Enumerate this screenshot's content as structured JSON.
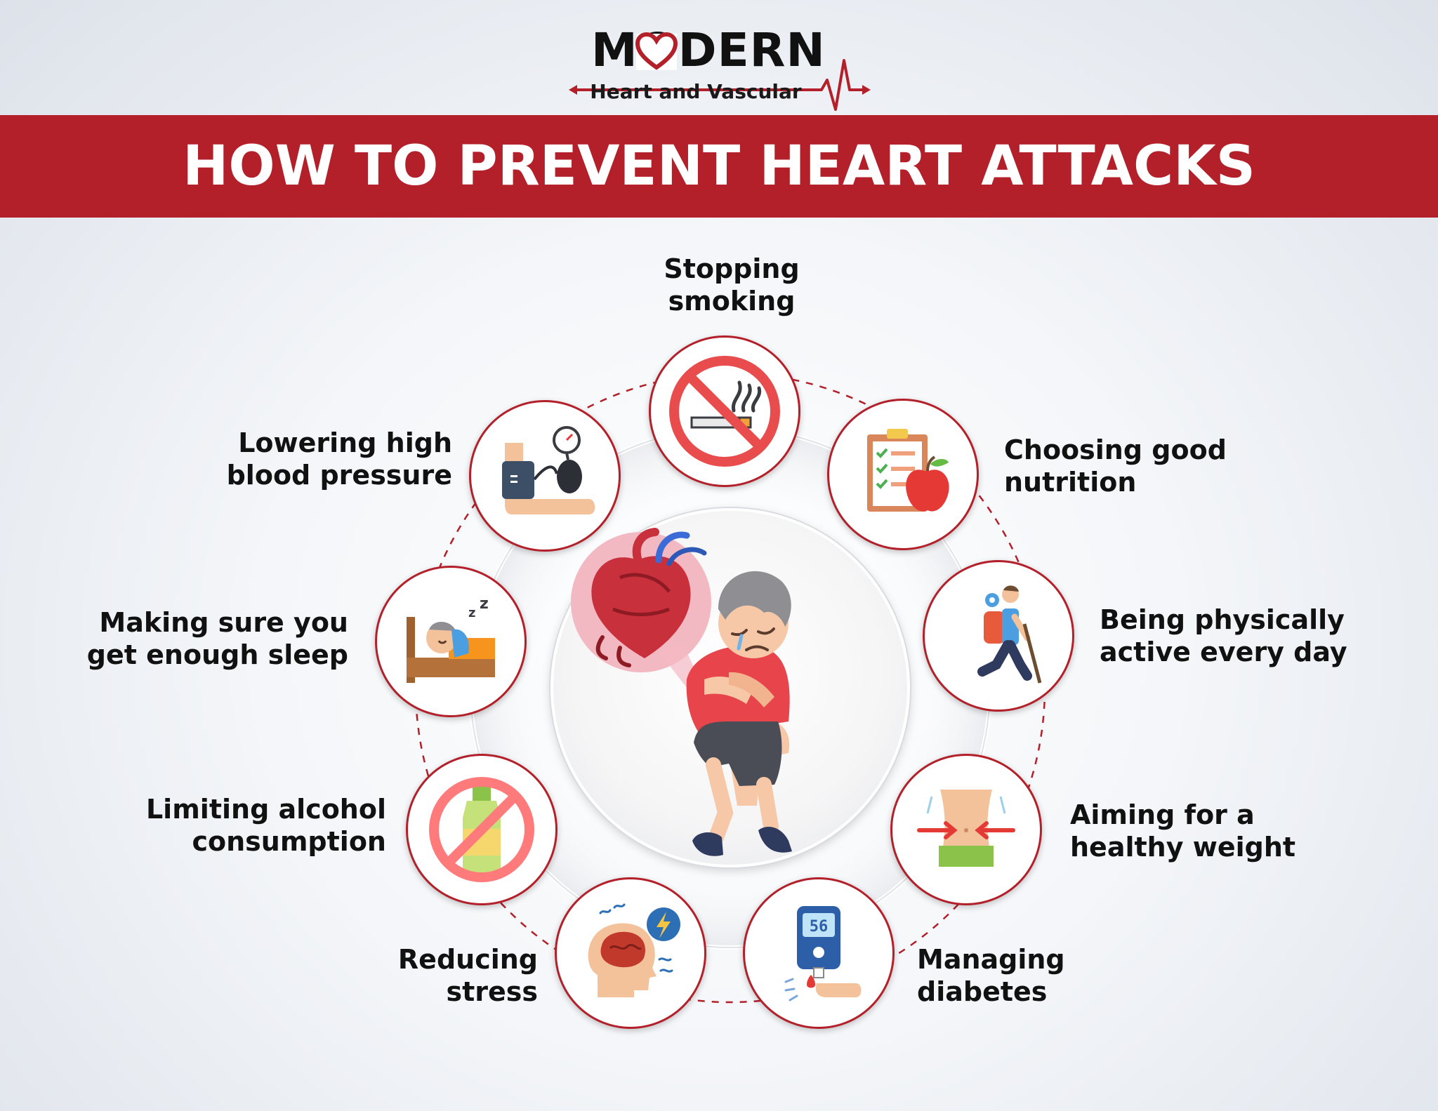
{
  "logo": {
    "brand": "MODERN",
    "subtitle": "Heart and Vascular"
  },
  "banner": {
    "title": "HOW TO PREVENT HEART ATTACKS"
  },
  "colors": {
    "brand_red": "#b3202a",
    "ring_dash": "#b3202a",
    "text": "#111111"
  },
  "center": {
    "illustration": "man-clutching-chest-heart-attack"
  },
  "tips": [
    {
      "icon": "no-smoking-icon",
      "lines": [
        "Stopping",
        "smoking"
      ]
    },
    {
      "icon": "nutrition-checklist-apple-icon",
      "lines": [
        "Choosing good",
        "nutrition"
      ]
    },
    {
      "icon": "hiker-icon",
      "lines": [
        "Being physically",
        "active every day"
      ]
    },
    {
      "icon": "waist-measure-icon",
      "lines": [
        "Aiming for a",
        "healthy weight"
      ]
    },
    {
      "icon": "glucose-meter-icon",
      "meter_reading": "56",
      "lines": [
        "Managing",
        "diabetes"
      ]
    },
    {
      "icon": "stressed-head-icon",
      "lines": [
        "Reducing",
        "stress"
      ]
    },
    {
      "icon": "no-alcohol-icon",
      "lines": [
        "Limiting alcohol",
        "consumption"
      ]
    },
    {
      "icon": "sleeping-person-icon",
      "lines": [
        "Making sure you",
        "get enough sleep"
      ]
    },
    {
      "icon": "blood-pressure-cuff-icon",
      "lines": [
        "Lowering high",
        "blood pressure"
      ]
    }
  ]
}
